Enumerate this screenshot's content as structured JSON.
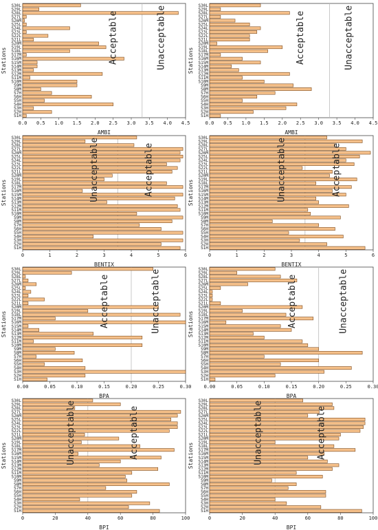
{
  "colors": {
    "bar_fill": "#f5c08a",
    "bar_stroke": "#7a4a1e",
    "axis": "#444444",
    "threshold": "#bbbbbb"
  },
  "chart_data": [
    {
      "type": "bar",
      "orientation": "horizontal",
      "xlabel": "AMBI",
      "ylabel": "Stations",
      "xlim": [
        0,
        4.5
      ],
      "xticks": [
        0.0,
        0.5,
        1.0,
        1.5,
        2.0,
        2.5,
        3.0,
        3.5,
        4.0,
        4.5
      ],
      "threshold": 3.3,
      "zone_left": "Acceptable",
      "zone_right": "Unacceptable",
      "grid": false,
      "categories": [
        "S1H",
        "S2H",
        "S3H",
        "S4H",
        "S5H",
        "S6H",
        "S7H",
        "S8M",
        "S9M",
        "S10M",
        "S11M",
        "S12M",
        "S13M",
        "S14M",
        "S15M",
        "S16M",
        "S17M",
        "S18L",
        "S19L",
        "S20M",
        "S21L",
        "S22L",
        "S23L",
        "S24L",
        "S25L",
        "S26M",
        "S27L",
        "S28L",
        "S29L",
        "S30L"
      ],
      "values": [
        0.1,
        0.8,
        0.3,
        2.5,
        0.6,
        1.9,
        0.8,
        0.5,
        1.5,
        1.5,
        0.2,
        2.2,
        0.3,
        0.4,
        0.4,
        2.8,
        0.1,
        1.3,
        2.3,
        2.1,
        0.3,
        0.7,
        0.1,
        1.3,
        0.1,
        0.05,
        0.1,
        4.3,
        0.45,
        1.6
      ]
    },
    {
      "type": "bar",
      "orientation": "horizontal",
      "xlabel": "AMBI",
      "ylabel": "Stations",
      "xlim": [
        0,
        4.5
      ],
      "xticks": [
        0.0,
        0.5,
        1.0,
        1.5,
        2.0,
        2.5,
        3.0,
        3.5,
        4.0,
        4.5
      ],
      "threshold": 3.3,
      "zone_left": "Acceptable",
      "zone_right": "Unacceptable",
      "grid": false,
      "categories": [
        "S1H",
        "S2H",
        "S3H",
        "S4H",
        "S5H",
        "S6H",
        "S7H",
        "S8M",
        "S9M",
        "S10M",
        "S11M",
        "S12M",
        "S13M",
        "S14M",
        "S15M",
        "S16M",
        "S17M",
        "S18L",
        "S19L",
        "S20M",
        "S21L",
        "S22L",
        "S23L",
        "S24L",
        "S25L",
        "S26M",
        "S27L",
        "S28L",
        "S29L",
        "S30L"
      ],
      "values": [
        0.3,
        1.2,
        2.1,
        2.4,
        0.9,
        1.3,
        1.8,
        2.8,
        2.3,
        1.5,
        0.9,
        2.2,
        0.8,
        0.6,
        1.4,
        0.9,
        0.3,
        1.6,
        2.0,
        0.2,
        1.1,
        1.1,
        1.3,
        1.4,
        1.1,
        0.7,
        0.3,
        2.2,
        0.3,
        1.4
      ]
    },
    {
      "type": "bar",
      "orientation": "horizontal",
      "xlabel": "BENTIX",
      "ylabel": "Stations",
      "xlim": [
        0,
        6
      ],
      "xticks": [
        0,
        1,
        2,
        3,
        4,
        5,
        6
      ],
      "threshold": 3.5,
      "zone_left": "Unacceptable",
      "zone_right": "Acceptable",
      "grid": false,
      "categories": [
        "S1H",
        "S2H",
        "S3H",
        "S4H",
        "S5H",
        "S6H",
        "S7H",
        "S8M",
        "S9M",
        "S10M",
        "S11M",
        "S12M",
        "S13M",
        "S14M",
        "S15M",
        "S16M",
        "S17M",
        "S18L",
        "S19L",
        "S20M",
        "S21L",
        "S22L",
        "S23L",
        "S24L",
        "S25L",
        "S26M",
        "S27L",
        "S28L",
        "S29L",
        "S30L"
      ],
      "values": [
        5.8,
        5.1,
        5.9,
        2.6,
        5.9,
        5.1,
        4.3,
        5.5,
        5.9,
        4.2,
        5.8,
        5.7,
        3.1,
        5.6,
        5.9,
        2.2,
        5.9,
        5.3,
        3.0,
        3.3,
        5.5,
        5.7,
        5.3,
        5.8,
        5.9,
        5.8,
        5.9,
        4.1,
        2.3,
        4.2
      ]
    },
    {
      "type": "bar",
      "orientation": "horizontal",
      "xlabel": "BENTIX",
      "ylabel": "Stations",
      "xlim": [
        0,
        6
      ],
      "xticks": [
        0,
        1,
        2,
        3,
        4,
        5,
        6
      ],
      "threshold": 3.5,
      "zone_left": "Unacceptable",
      "zone_right": "Acceptable",
      "grid": false,
      "categories": [
        "S1H",
        "S2H",
        "S3H",
        "S4H",
        "S5H",
        "S6H",
        "S7H",
        "S8M",
        "S9M",
        "S10M",
        "S11M",
        "S12M",
        "S13M",
        "S14M",
        "S15M",
        "S16M",
        "S17M",
        "S18L",
        "S19L",
        "S20M",
        "S21L",
        "S22L",
        "S23L",
        "S24L",
        "S25L",
        "S26M",
        "S27L",
        "S28L",
        "S29L",
        "S30L"
      ],
      "values": [
        5.7,
        4.3,
        3.3,
        4.9,
        2.9,
        4.6,
        4.0,
        2.3,
        4.8,
        3.7,
        3.6,
        5.1,
        4.0,
        3.9,
        5.0,
        4.5,
        5.2,
        3.9,
        5.4,
        4.4,
        4.5,
        3.4,
        5.3,
        5.0,
        5.5,
        5.9,
        5.0,
        4.6,
        5.6,
        4.3
      ]
    },
    {
      "type": "bar",
      "orientation": "horizontal",
      "xlabel": "BPA",
      "ylabel": "Stations",
      "xlim": [
        0,
        0.3
      ],
      "xticks": [
        0.0,
        0.05,
        0.1,
        0.15,
        0.2,
        0.25,
        0.3
      ],
      "threshold": 0.2,
      "zone_left": "Acceptable",
      "zone_right": "Unacceptable",
      "grid": false,
      "categories": [
        "S1H",
        "S2H",
        "S3H",
        "S4H",
        "S5H",
        "S6H",
        "S7H",
        "S8M",
        "S9M",
        "S10M",
        "S11M",
        "S12M",
        "S13M",
        "S14M",
        "S15M",
        "S16M",
        "S17M",
        "S18L",
        "S19L",
        "S20M",
        "S21L",
        "S22L",
        "S23L",
        "S24L",
        "S25L",
        "S26M",
        "S27L",
        "S28L",
        "S29L",
        "S30L"
      ],
      "values": [
        0.045,
        0.115,
        0.3,
        0.115,
        0.04,
        0.11,
        0.025,
        0.095,
        0.06,
        0.22,
        0.02,
        0.22,
        0.13,
        0.03,
        0.01,
        0.3,
        0.06,
        0.29,
        0.12,
        0.25,
        0.01,
        0.04,
        0.01,
        0.015,
        0.005,
        0.025,
        0.01,
        0.005,
        0.09,
        0.24
      ]
    },
    {
      "type": "bar",
      "orientation": "horizontal",
      "xlabel": "BPA",
      "ylabel": "Stations",
      "xlim": [
        0,
        0.3
      ],
      "xticks": [
        0.0,
        0.05,
        0.1,
        0.15,
        0.2,
        0.25,
        0.3
      ],
      "threshold": 0.2,
      "zone_left": "Acceptable",
      "zone_right": "Unacceptable",
      "grid": false,
      "categories": [
        "S1H",
        "S2H",
        "S3H",
        "S4H",
        "S5H",
        "S6H",
        "S7H",
        "S8M",
        "S9M",
        "S10M",
        "S11M",
        "S12M",
        "S13M",
        "S14M",
        "S15M",
        "S16M",
        "S17M",
        "S18L",
        "S19L",
        "S20M",
        "S21L",
        "S22L",
        "S23L",
        "S24L",
        "S25L",
        "S26M",
        "S27L",
        "S28L",
        "S29L",
        "S30L"
      ],
      "values": [
        0.01,
        0.12,
        0.21,
        0.26,
        0.13,
        0.2,
        0.1,
        0.28,
        0.2,
        0.18,
        0.17,
        0.1,
        0.08,
        0.15,
        0.13,
        0.03,
        0.19,
        0.14,
        0.06,
        0.17,
        0.02,
        0.005,
        0.005,
        0.005,
        0.02,
        0.07,
        0.16,
        0.13,
        0.05,
        0.12
      ]
    },
    {
      "type": "bar",
      "orientation": "horizontal",
      "xlabel": "BPI",
      "ylabel": "Stations",
      "xlim": [
        0,
        100
      ],
      "xticks": [
        0,
        20,
        40,
        60,
        80,
        100
      ],
      "threshold": 40,
      "zone_left": "Unacceptable",
      "zone_right": "Acceptable",
      "grid": false,
      "categories": [
        "S1H",
        "S2H",
        "S3H",
        "S4H",
        "S5H",
        "S6H",
        "S7H",
        "S8M",
        "S9M",
        "S10M",
        "S11M",
        "S12M",
        "S13M",
        "S14M",
        "S15M",
        "S16M",
        "S17M",
        "S18L",
        "S19L",
        "S20M",
        "S21L",
        "S22L",
        "S23L",
        "S24L",
        "S25L",
        "S26M",
        "S27L",
        "S28L",
        "S29L",
        "S30L"
      ],
      "values": [
        84,
        65,
        78,
        35,
        67,
        70,
        51,
        90,
        64,
        63,
        67,
        83,
        47,
        60,
        85,
        34,
        93,
        72,
        36,
        59,
        38,
        90,
        95,
        95,
        91,
        95,
        97,
        32,
        60,
        43
      ]
    },
    {
      "type": "bar",
      "orientation": "horizontal",
      "xlabel": "BPI",
      "ylabel": "Stations",
      "xlim": [
        0,
        100
      ],
      "xticks": [
        0,
        20,
        40,
        60,
        80,
        100
      ],
      "threshold": 40,
      "zone_left": "Unacceptable",
      "zone_right": "Acceptable",
      "grid": false,
      "categories": [
        "S1H",
        "S2H",
        "S3H",
        "S4H",
        "S5H",
        "S6H",
        "S7H",
        "S8M",
        "S9M",
        "S10M",
        "S11M",
        "S12M",
        "S13M",
        "S14M",
        "S15M",
        "S16M",
        "S17M",
        "S18L",
        "S19L",
        "S20M",
        "S21L",
        "S22L",
        "S23L",
        "S24L",
        "S25L",
        "S26M",
        "S27L",
        "S28L",
        "S29L",
        "S30L"
      ],
      "values": [
        93,
        68,
        47,
        40,
        71,
        71,
        48,
        53,
        38,
        69,
        53,
        75,
        79,
        72,
        60,
        70,
        89,
        76,
        40,
        79,
        80,
        92,
        94,
        95,
        95,
        60,
        67,
        76,
        75,
        57
      ]
    }
  ]
}
